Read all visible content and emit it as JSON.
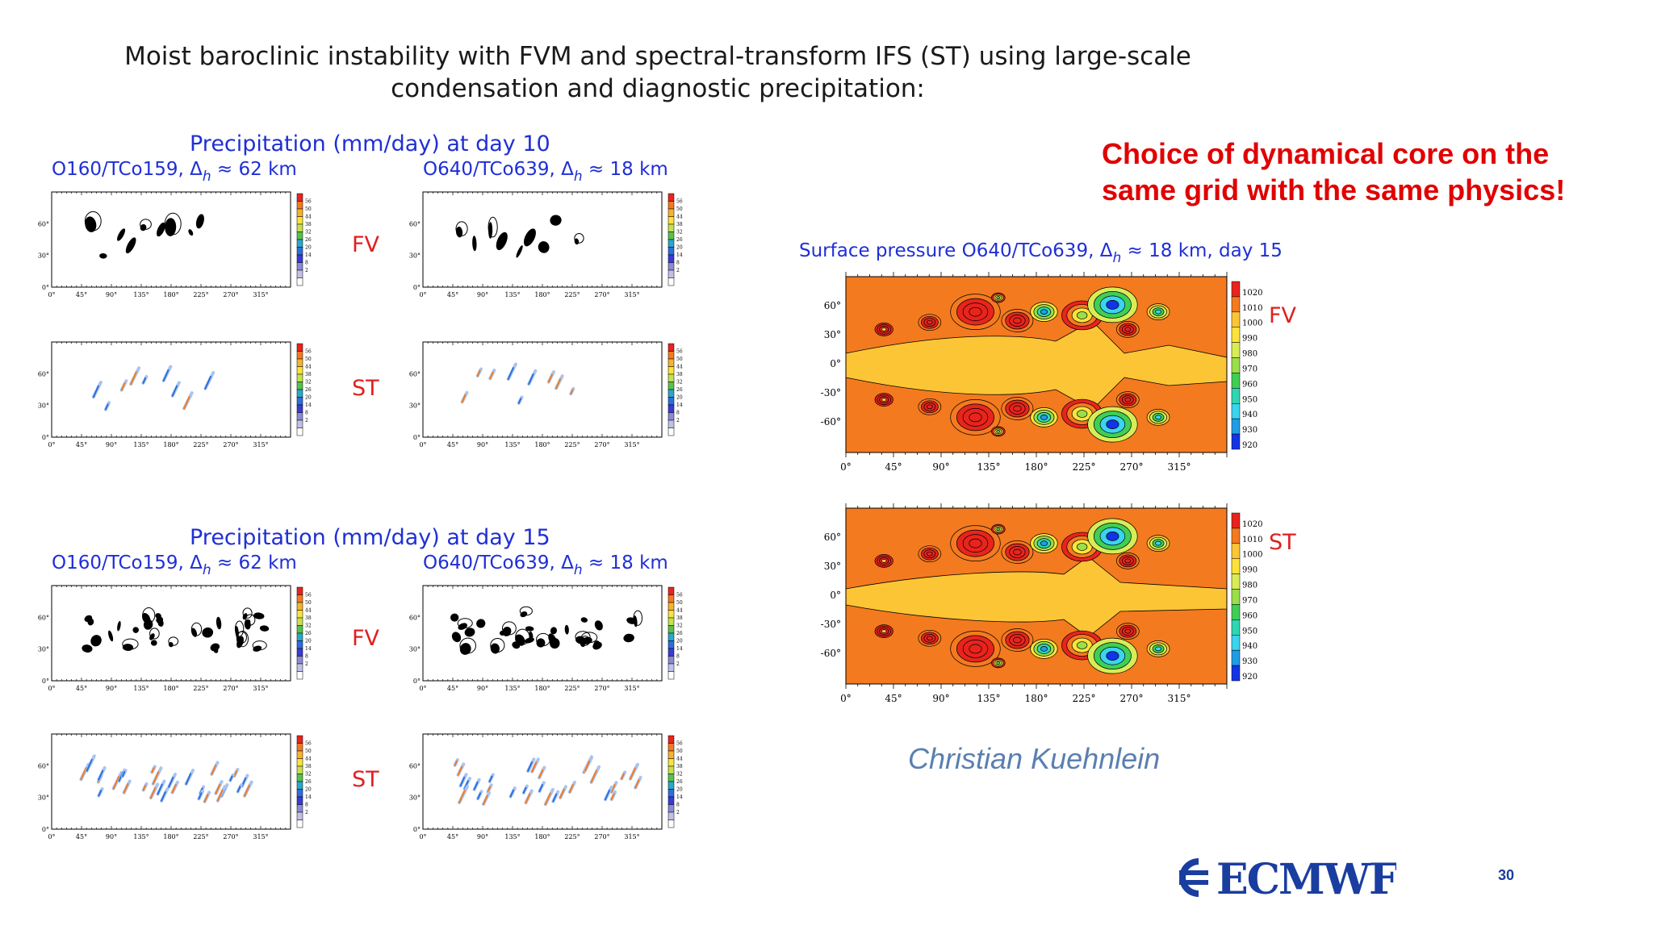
{
  "slide": {
    "title_line1": "Moist baroclinic instability with FVM and spectral-transform IFS (ST) using large-scale",
    "title_line2": "condensation and diagnostic precipitation:",
    "page_number": "30",
    "author": "Christian Kuehnlein",
    "note_line1": "Choice of dynamical core on the",
    "note_line2": "same grid with the same physics!"
  },
  "precip": {
    "day10_title": "Precipitation (mm/day) at day 10",
    "day15_title": "Precipitation (mm/day) at day 15",
    "col1_prefix": "O160/TCo159, Δ",
    "col1_suffix": " ≈ 62 km",
    "col2_prefix": "O640/TCo639, Δ",
    "col2_suffix": " ≈ 18 km",
    "h_sub": "h",
    "row_fv": "FV",
    "row_st": "ST",
    "x_ticks": [
      "0°",
      "45°",
      "90°",
      "135°",
      "180°",
      "225°",
      "270°",
      "315°"
    ],
    "y_ticks": [
      "0°",
      "30°",
      "60°"
    ],
    "colorbar_levels": [
      "56",
      "50",
      "44",
      "38",
      "32",
      "26",
      "20",
      "14",
      "8",
      "2"
    ]
  },
  "surface_pressure": {
    "title_prefix": "Surface pressure O640/TCo639, Δ",
    "title_suffix": " ≈ 18 km, day 15",
    "row_fv": "FV",
    "row_st": "ST",
    "x_ticks": [
      "0°",
      "45°",
      "90°",
      "135°",
      "180°",
      "225°",
      "270°",
      "315°"
    ],
    "y_ticks": [
      "60°",
      "30°",
      "0°",
      "-30°",
      "-60°"
    ],
    "colorbar_levels": [
      "1020",
      "1010",
      "1000",
      "990",
      "980",
      "970",
      "960",
      "950",
      "940",
      "930",
      "920"
    ]
  },
  "colors": {
    "text_blue": "#1f2fd6",
    "accent_red": "#e00000",
    "author_blue": "#5a7fb0",
    "logo_blue": "#1a3da0",
    "field_orange": "#f47a1f",
    "field_yellow": "#fbc536",
    "field_red": "#e8241d",
    "field_blue": "#1233e6"
  },
  "logo": {
    "text": "ECMWF",
    "icon": "ecmwf-logo-icon"
  }
}
